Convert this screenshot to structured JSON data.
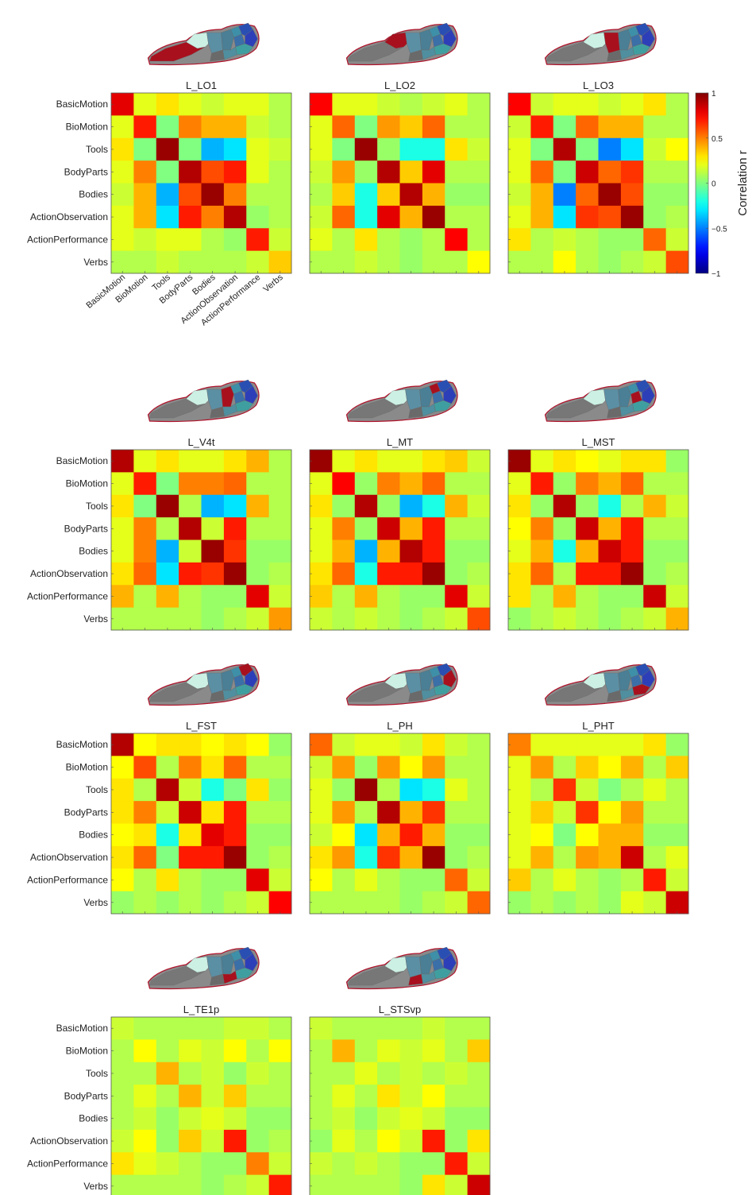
{
  "chart_data": {
    "type": "heatmap",
    "categories": [
      "BasicMotion",
      "BioMotion",
      "Tools",
      "BodyParts",
      "Bodies",
      "ActionObservation",
      "ActionPerformance",
      "Verbs"
    ],
    "colorbar": {
      "label": "Correlation r",
      "range": [
        -1,
        1
      ],
      "ticks": [
        "1",
        "0.5",
        "0",
        "−0.5",
        "−1"
      ],
      "colormap": "jet"
    },
    "panels": [
      {
        "title": "L_LO1",
        "highlight": 0,
        "matrix": [
          [
            0.8,
            0.2,
            0.3,
            0.2,
            0.15,
            0.2,
            0.2,
            0.1
          ],
          [
            0.2,
            0.7,
            0.0,
            0.5,
            0.4,
            0.4,
            0.15,
            0.1
          ],
          [
            0.3,
            0.0,
            0.95,
            0.0,
            -0.4,
            -0.3,
            0.2,
            0.15
          ],
          [
            0.2,
            0.5,
            0.0,
            0.9,
            0.6,
            0.7,
            0.2,
            0.1
          ],
          [
            0.15,
            0.4,
            -0.4,
            0.6,
            0.95,
            0.5,
            0.1,
            0.1
          ],
          [
            0.2,
            0.4,
            -0.3,
            0.7,
            0.5,
            0.9,
            0.05,
            0.1
          ],
          [
            0.2,
            0.15,
            0.2,
            0.2,
            0.1,
            0.05,
            0.7,
            0.15
          ],
          [
            0.1,
            0.1,
            0.15,
            0.1,
            0.1,
            0.1,
            0.15,
            0.35
          ]
        ]
      },
      {
        "title": "L_LO2",
        "highlight": 1,
        "matrix": [
          [
            0.75,
            0.2,
            0.2,
            0.15,
            0.1,
            0.15,
            0.2,
            0.1
          ],
          [
            0.2,
            0.55,
            0.0,
            0.45,
            0.35,
            0.55,
            0.1,
            0.1
          ],
          [
            0.2,
            0.0,
            0.95,
            0.05,
            -0.2,
            -0.2,
            0.3,
            0.15
          ],
          [
            0.15,
            0.45,
            0.05,
            0.9,
            0.35,
            0.8,
            0.1,
            0.1
          ],
          [
            0.1,
            0.35,
            -0.2,
            0.35,
            0.9,
            0.4,
            0.05,
            0.05
          ],
          [
            0.15,
            0.55,
            -0.2,
            0.8,
            0.4,
            0.95,
            0.1,
            0.1
          ],
          [
            0.2,
            0.1,
            0.3,
            0.1,
            0.05,
            0.1,
            0.75,
            0.1
          ],
          [
            0.1,
            0.1,
            0.15,
            0.1,
            0.05,
            0.1,
            0.1,
            0.25
          ]
        ]
      },
      {
        "title": "L_LO3",
        "highlight": 2,
        "matrix": [
          [
            0.75,
            0.15,
            0.2,
            0.2,
            0.15,
            0.2,
            0.3,
            0.1
          ],
          [
            0.15,
            0.7,
            0.0,
            0.55,
            0.4,
            0.4,
            0.1,
            0.1
          ],
          [
            0.2,
            0.0,
            0.9,
            0.0,
            -0.5,
            -0.3,
            0.15,
            0.25
          ],
          [
            0.2,
            0.55,
            0.0,
            0.85,
            0.55,
            0.65,
            0.1,
            0.1
          ],
          [
            0.15,
            0.4,
            -0.5,
            0.55,
            0.95,
            0.6,
            0.05,
            0.05
          ],
          [
            0.2,
            0.4,
            -0.3,
            0.65,
            0.6,
            0.95,
            0.05,
            0.1
          ],
          [
            0.3,
            0.1,
            0.15,
            0.1,
            0.05,
            0.05,
            0.55,
            0.15
          ],
          [
            0.1,
            0.1,
            0.25,
            0.1,
            0.05,
            0.1,
            0.15,
            0.6
          ]
        ]
      },
      {
        "title": "L_V4t",
        "highlight": 3,
        "matrix": [
          [
            0.9,
            0.2,
            0.3,
            0.2,
            0.2,
            0.3,
            0.4,
            0.1
          ],
          [
            0.2,
            0.7,
            0.0,
            0.5,
            0.5,
            0.55,
            0.1,
            0.1
          ],
          [
            0.3,
            0.0,
            0.95,
            0.1,
            -0.4,
            -0.3,
            0.4,
            0.1
          ],
          [
            0.2,
            0.5,
            0.1,
            0.9,
            0.15,
            0.7,
            0.1,
            0.1
          ],
          [
            0.2,
            0.5,
            -0.4,
            0.15,
            0.95,
            0.65,
            0.05,
            0.05
          ],
          [
            0.3,
            0.55,
            -0.3,
            0.7,
            0.65,
            0.95,
            0.05,
            0.1
          ],
          [
            0.4,
            0.1,
            0.4,
            0.1,
            0.05,
            0.05,
            0.8,
            0.15
          ],
          [
            0.1,
            0.1,
            0.1,
            0.1,
            0.05,
            0.1,
            0.15,
            0.45
          ]
        ]
      },
      {
        "title": "L_MT",
        "highlight": 4,
        "matrix": [
          [
            0.95,
            0.2,
            0.3,
            0.2,
            0.2,
            0.3,
            0.35,
            0.15
          ],
          [
            0.2,
            0.75,
            0.05,
            0.5,
            0.4,
            0.55,
            0.1,
            0.1
          ],
          [
            0.3,
            0.05,
            0.9,
            0.05,
            -0.4,
            -0.2,
            0.4,
            0.15
          ],
          [
            0.2,
            0.5,
            0.05,
            0.85,
            0.4,
            0.7,
            0.1,
            0.1
          ],
          [
            0.2,
            0.4,
            -0.4,
            0.4,
            0.9,
            0.7,
            0.05,
            0.05
          ],
          [
            0.3,
            0.55,
            -0.2,
            0.7,
            0.7,
            0.95,
            0.05,
            0.1
          ],
          [
            0.35,
            0.1,
            0.4,
            0.1,
            0.05,
            0.05,
            0.8,
            0.15
          ],
          [
            0.15,
            0.1,
            0.15,
            0.1,
            0.05,
            0.1,
            0.15,
            0.6
          ]
        ]
      },
      {
        "title": "L_MST",
        "highlight": 5,
        "matrix": [
          [
            0.95,
            0.2,
            0.3,
            0.25,
            0.2,
            0.3,
            0.3,
            0.05
          ],
          [
            0.2,
            0.7,
            0.05,
            0.5,
            0.4,
            0.55,
            0.1,
            0.1
          ],
          [
            0.3,
            0.05,
            0.9,
            0.05,
            -0.2,
            0.1,
            0.4,
            0.15
          ],
          [
            0.25,
            0.5,
            0.05,
            0.85,
            0.4,
            0.7,
            0.1,
            0.1
          ],
          [
            0.2,
            0.4,
            -0.2,
            0.4,
            0.85,
            0.7,
            0.05,
            0.05
          ],
          [
            0.3,
            0.55,
            0.1,
            0.7,
            0.7,
            0.95,
            0.05,
            0.1
          ],
          [
            0.3,
            0.1,
            0.4,
            0.1,
            0.05,
            0.05,
            0.85,
            0.15
          ],
          [
            0.05,
            0.1,
            0.15,
            0.1,
            0.05,
            0.1,
            0.15,
            0.4
          ]
        ]
      },
      {
        "title": "L_FST",
        "highlight": 6,
        "matrix": [
          [
            0.9,
            0.25,
            0.3,
            0.3,
            0.25,
            0.3,
            0.25,
            0.05
          ],
          [
            0.25,
            0.6,
            0.1,
            0.5,
            0.3,
            0.55,
            0.1,
            0.1
          ],
          [
            0.3,
            0.1,
            0.9,
            0.15,
            -0.2,
            0.0,
            0.3,
            0.05
          ],
          [
            0.3,
            0.5,
            0.15,
            0.85,
            0.3,
            0.7,
            0.1,
            0.1
          ],
          [
            0.25,
            0.3,
            -0.2,
            0.3,
            0.8,
            0.7,
            0.05,
            0.05
          ],
          [
            0.3,
            0.55,
            0.0,
            0.7,
            0.7,
            0.95,
            0.05,
            0.1
          ],
          [
            0.25,
            0.1,
            0.3,
            0.1,
            0.05,
            0.05,
            0.8,
            0.15
          ],
          [
            0.05,
            0.1,
            0.05,
            0.1,
            0.05,
            0.1,
            0.15,
            0.75
          ]
        ]
      },
      {
        "title": "L_PH",
        "highlight": 7,
        "matrix": [
          [
            0.55,
            0.15,
            0.2,
            0.2,
            0.15,
            0.3,
            0.15,
            0.1
          ],
          [
            0.15,
            0.45,
            0.05,
            0.45,
            0.25,
            0.45,
            0.1,
            0.1
          ],
          [
            0.2,
            0.05,
            0.95,
            0.1,
            -0.3,
            -0.2,
            0.2,
            0.1
          ],
          [
            0.2,
            0.45,
            0.1,
            0.9,
            0.4,
            0.65,
            0.1,
            0.1
          ],
          [
            0.15,
            0.25,
            -0.3,
            0.4,
            0.7,
            0.4,
            0.05,
            0.05
          ],
          [
            0.3,
            0.45,
            -0.2,
            0.65,
            0.4,
            0.95,
            0.05,
            0.1
          ],
          [
            0.25,
            0.1,
            0.2,
            0.1,
            0.05,
            0.05,
            0.55,
            0.15
          ],
          [
            0.1,
            0.1,
            0.1,
            0.1,
            0.05,
            0.1,
            0.15,
            0.55
          ]
        ]
      },
      {
        "title": "L_PHT",
        "highlight": 8,
        "matrix": [
          [
            0.5,
            0.2,
            0.2,
            0.2,
            0.2,
            0.2,
            0.3,
            0.05
          ],
          [
            0.2,
            0.45,
            0.1,
            0.35,
            0.25,
            0.4,
            0.1,
            0.35
          ],
          [
            0.2,
            0.1,
            0.65,
            0.15,
            0.0,
            0.1,
            0.2,
            0.1
          ],
          [
            0.2,
            0.35,
            0.15,
            0.65,
            0.25,
            0.45,
            0.1,
            0.1
          ],
          [
            0.2,
            0.25,
            0.0,
            0.25,
            0.4,
            0.4,
            0.05,
            0.05
          ],
          [
            0.2,
            0.4,
            0.1,
            0.45,
            0.4,
            0.85,
            0.1,
            0.2
          ],
          [
            0.35,
            0.1,
            0.2,
            0.1,
            0.05,
            0.1,
            0.7,
            0.15
          ],
          [
            0.05,
            0.1,
            0.05,
            0.1,
            0.05,
            0.2,
            0.15,
            0.85
          ]
        ]
      },
      {
        "title": "L_TE1p",
        "highlight": 9,
        "matrix": [
          [
            0.15,
            0.1,
            0.1,
            0.1,
            0.1,
            0.15,
            0.15,
            0.1
          ],
          [
            0.1,
            0.25,
            0.1,
            0.2,
            0.15,
            0.25,
            0.1,
            0.25
          ],
          [
            0.1,
            0.1,
            0.4,
            0.1,
            0.15,
            0.05,
            0.15,
            0.1
          ],
          [
            0.1,
            0.2,
            0.1,
            0.4,
            0.15,
            0.35,
            0.1,
            0.1
          ],
          [
            0.1,
            0.15,
            0.05,
            0.15,
            0.2,
            0.15,
            0.05,
            0.05
          ],
          [
            0.15,
            0.25,
            0.05,
            0.35,
            0.15,
            0.7,
            0.05,
            0.1
          ],
          [
            0.3,
            0.2,
            0.15,
            0.1,
            0.05,
            0.05,
            0.5,
            0.15
          ],
          [
            0.1,
            0.1,
            0.1,
            0.1,
            0.05,
            0.1,
            0.15,
            0.7
          ]
        ]
      },
      {
        "title": "L_STSvp",
        "highlight": 10,
        "matrix": [
          [
            0.15,
            0.1,
            0.1,
            0.1,
            0.1,
            0.15,
            0.1,
            0.1
          ],
          [
            0.1,
            0.4,
            0.1,
            0.2,
            0.15,
            0.2,
            0.1,
            0.35
          ],
          [
            0.1,
            0.1,
            0.2,
            0.1,
            0.15,
            0.1,
            0.15,
            0.1
          ],
          [
            0.1,
            0.2,
            0.1,
            0.3,
            0.15,
            0.25,
            0.1,
            0.1
          ],
          [
            0.1,
            0.15,
            0.05,
            0.15,
            0.2,
            0.15,
            0.05,
            0.05
          ],
          [
            0.05,
            0.2,
            0.1,
            0.25,
            0.15,
            0.7,
            0.05,
            0.3
          ],
          [
            0.15,
            0.1,
            0.15,
            0.1,
            0.05,
            0.05,
            0.7,
            0.15
          ],
          [
            0.1,
            0.1,
            0.1,
            0.1,
            0.05,
            0.3,
            0.15,
            0.85
          ]
        ]
      }
    ]
  }
}
